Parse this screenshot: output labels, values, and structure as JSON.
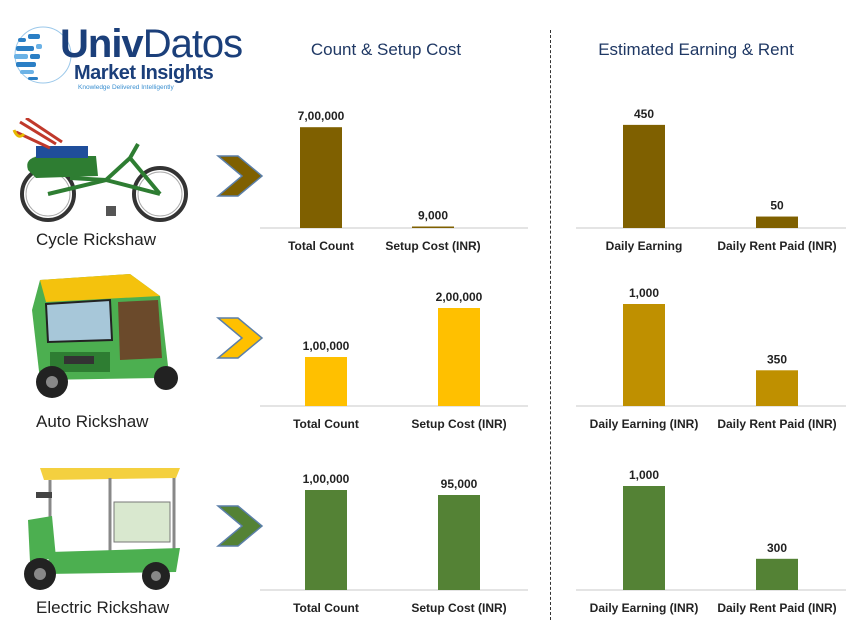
{
  "logo": {
    "brand_bold": "Univ",
    "brand_thin": "Datos",
    "subtitle": "Market Insights",
    "tagline": "Knowledge Delivered Intelligently"
  },
  "sections": {
    "left_title": "Count & Setup Cost",
    "right_title": "Estimated Earning & Rent"
  },
  "vehicles": [
    {
      "label": "Cycle Rickshaw",
      "icon": "cycle-rickshaw-icon",
      "color": "#7f6000"
    },
    {
      "label": "Auto Rickshaw",
      "icon": "auto-rickshaw-icon",
      "color": "#ffc000"
    },
    {
      "label": "Electric Rickshaw",
      "icon": "electric-rickshaw-icon",
      "color": "#548235"
    }
  ],
  "chart_data": [
    {
      "type": "bar",
      "group": "Count & Setup Cost",
      "vehicle": "Cycle Rickshaw",
      "categories": [
        "Total Count",
        "Setup Cost (INR)"
      ],
      "values": [
        700000,
        9000
      ],
      "value_labels": [
        "7,00,000",
        "9,000"
      ],
      "color": "#7f6000",
      "ylim": [
        0,
        750000
      ]
    },
    {
      "type": "bar",
      "group": "Estimated Earning & Rent",
      "vehicle": "Cycle Rickshaw",
      "categories": [
        "Daily Earning",
        "Daily Rent Paid (INR)"
      ],
      "values": [
        450,
        50
      ],
      "value_labels": [
        "450",
        "50"
      ],
      "color": "#7f6000",
      "ylim": [
        0,
        480
      ]
    },
    {
      "type": "bar",
      "group": "Count & Setup Cost",
      "vehicle": "Auto Rickshaw",
      "categories": [
        "Total Count",
        "Setup Cost (INR)"
      ],
      "values": [
        100000,
        200000
      ],
      "value_labels": [
        "1,00,000",
        "2,00,000"
      ],
      "color": "#ffc000",
      "ylim": [
        0,
        200000
      ]
    },
    {
      "type": "bar",
      "group": "Estimated Earning & Rent",
      "vehicle": "Auto Rickshaw",
      "categories": [
        "Daily Earning (INR)",
        "Daily Rent Paid (INR)"
      ],
      "values": [
        1000,
        350
      ],
      "value_labels": [
        "1,000",
        "350"
      ],
      "color": "#bf9000",
      "ylim": [
        0,
        1000
      ]
    },
    {
      "type": "bar",
      "group": "Count & Setup Cost",
      "vehicle": "Electric Rickshaw",
      "categories": [
        "Total Count",
        "Setup Cost (INR)"
      ],
      "values": [
        100000,
        95000
      ],
      "value_labels": [
        "1,00,000",
        "95,000"
      ],
      "color": "#548235",
      "ylim": [
        0,
        100000
      ]
    },
    {
      "type": "bar",
      "group": "Estimated Earning & Rent",
      "vehicle": "Electric Rickshaw",
      "categories": [
        "Daily Earning (INR)",
        "Daily Rent Paid (INR)"
      ],
      "values": [
        1000,
        300
      ],
      "value_labels": [
        "1,000",
        "300"
      ],
      "color": "#548235",
      "ylim": [
        0,
        1000
      ]
    }
  ]
}
